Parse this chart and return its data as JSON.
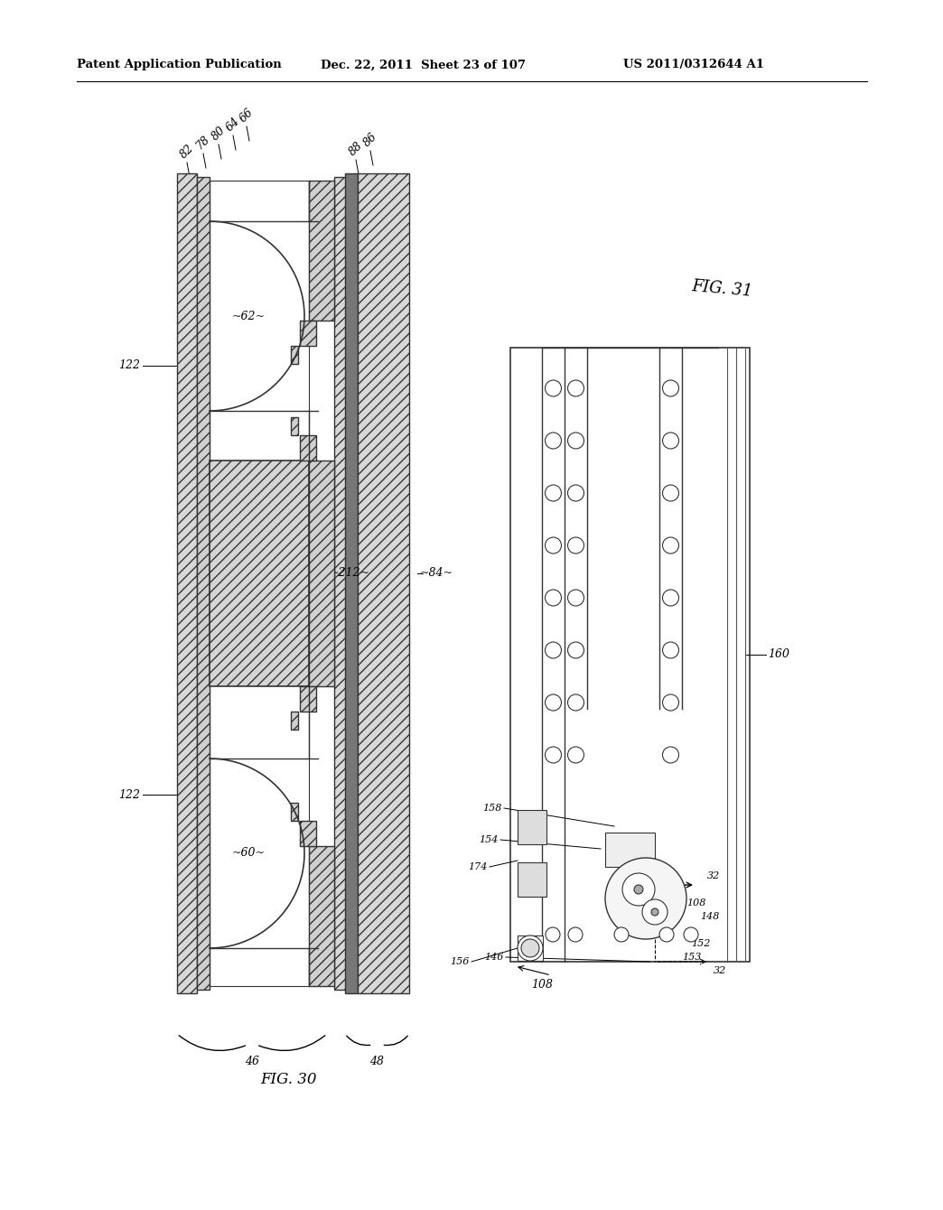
{
  "header_left": "Patent Application Publication",
  "header_mid": "Dec. 22, 2011  Sheet 23 of 107",
  "header_right": "US 2011/0312644 A1",
  "background": "#ffffff",
  "line_color": "#000000"
}
